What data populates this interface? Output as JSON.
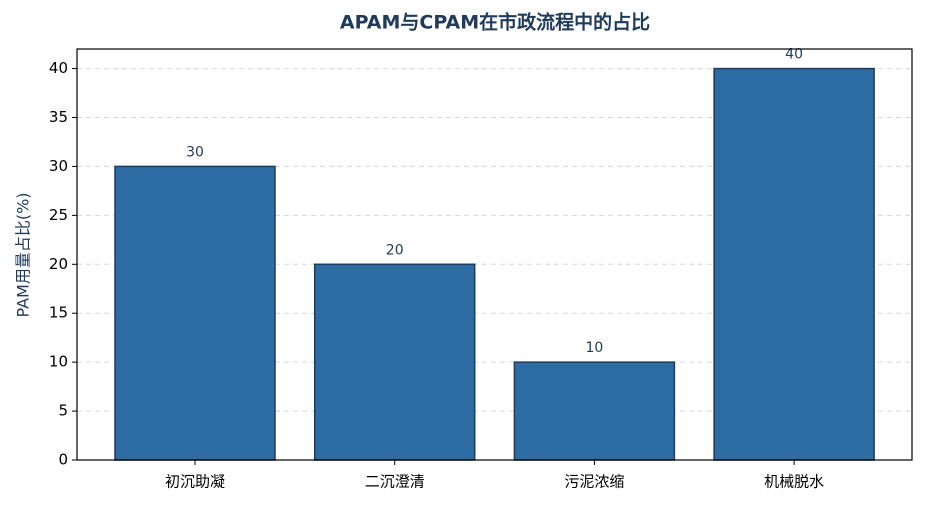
{
  "chart_data": {
    "type": "bar",
    "title": "APAM与CPAM在市政流程中的占比",
    "y_label": "PAM用量占比(%)",
    "categories": [
      "初沉助凝",
      "二沉澄清",
      "污泥浓缩",
      "机械脱水"
    ],
    "values": [
      30,
      20,
      10,
      40
    ],
    "color": "#2e6da4",
    "edge_color": "#1f3a5a",
    "ylim": [
      0,
      42
    ],
    "yticks": [
      0,
      5,
      10,
      15,
      20,
      25,
      30,
      35,
      40
    ],
    "grid": true
  }
}
